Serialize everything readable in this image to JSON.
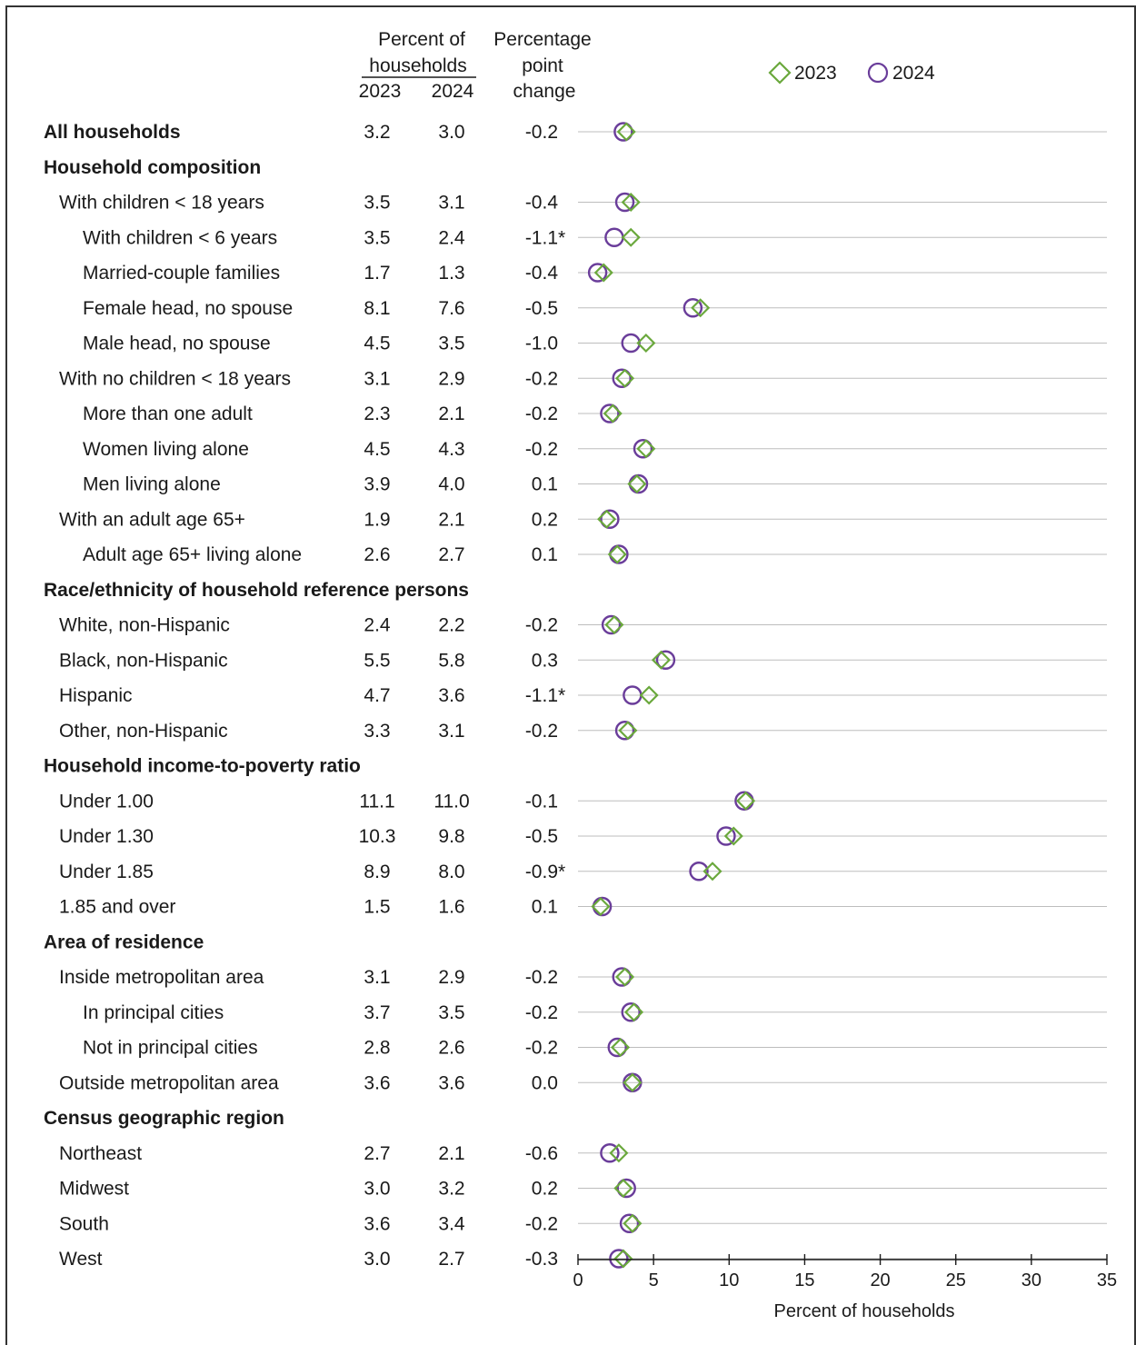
{
  "chart_data": {
    "type": "scatter",
    "header": {
      "percent_line1": "Percent of",
      "percent_line2": "households",
      "col_2023": "2023",
      "col_2024": "2024",
      "change_line1": "Percentage",
      "change_line2": "point",
      "change_line3": "change"
    },
    "legend": [
      {
        "name": "2023",
        "marker": "diamond",
        "color": "#6aa83c"
      },
      {
        "name": "2024",
        "marker": "circle",
        "color": "#6a3d9a"
      }
    ],
    "xlabel": "Percent of households",
    "xlim": [
      0,
      35
    ],
    "xticks": [
      "0",
      "5",
      "10",
      "15",
      "20",
      "25",
      "30",
      "35"
    ],
    "rows": [
      {
        "label": "All households",
        "level": 0,
        "section": true,
        "v2023": 3.2,
        "v2024": 3.0,
        "t2023": "3.2",
        "t2024": "3.0",
        "change": "-0.2"
      },
      {
        "label": "Household composition",
        "level": 0,
        "section": true
      },
      {
        "label": "With children < 18 years",
        "level": 1,
        "v2023": 3.5,
        "v2024": 3.1,
        "t2023": "3.5",
        "t2024": "3.1",
        "change": "-0.4"
      },
      {
        "label": "With children < 6 years",
        "level": 2,
        "v2023": 3.5,
        "v2024": 2.4,
        "t2023": "3.5",
        "t2024": "2.4",
        "change": "-1.1*"
      },
      {
        "label": "Married-couple families",
        "level": 2,
        "v2023": 1.7,
        "v2024": 1.3,
        "t2023": "1.7",
        "t2024": "1.3",
        "change": "-0.4"
      },
      {
        "label": "Female head, no spouse",
        "level": 2,
        "v2023": 8.1,
        "v2024": 7.6,
        "t2023": "8.1",
        "t2024": "7.6",
        "change": "-0.5"
      },
      {
        "label": "Male head, no spouse",
        "level": 2,
        "v2023": 4.5,
        "v2024": 3.5,
        "t2023": "4.5",
        "t2024": "3.5",
        "change": "-1.0"
      },
      {
        "label": "With no children < 18 years",
        "level": 1,
        "v2023": 3.1,
        "v2024": 2.9,
        "t2023": "3.1",
        "t2024": "2.9",
        "change": "-0.2"
      },
      {
        "label": "More than one adult",
        "level": 2,
        "v2023": 2.3,
        "v2024": 2.1,
        "t2023": "2.3",
        "t2024": "2.1",
        "change": "-0.2"
      },
      {
        "label": "Women living alone",
        "level": 2,
        "v2023": 4.5,
        "v2024": 4.3,
        "t2023": "4.5",
        "t2024": "4.3",
        "change": "-0.2"
      },
      {
        "label": "Men living alone",
        "level": 2,
        "v2023": 3.9,
        "v2024": 4.0,
        "t2023": "3.9",
        "t2024": "4.0",
        "change": "0.1"
      },
      {
        "label": "With an adult age 65+",
        "level": 1,
        "v2023": 1.9,
        "v2024": 2.1,
        "t2023": "1.9",
        "t2024": "2.1",
        "change": "0.2"
      },
      {
        "label": "Adult age 65+ living alone",
        "level": 2,
        "v2023": 2.6,
        "v2024": 2.7,
        "t2023": "2.6",
        "t2024": "2.7",
        "change": "0.1"
      },
      {
        "label": "Race/ethnicity of household reference persons",
        "level": 0,
        "section": true
      },
      {
        "label": "White, non-Hispanic",
        "level": 1,
        "v2023": 2.4,
        "v2024": 2.2,
        "t2023": "2.4",
        "t2024": "2.2",
        "change": "-0.2"
      },
      {
        "label": "Black, non-Hispanic",
        "level": 1,
        "v2023": 5.5,
        "v2024": 5.8,
        "t2023": "5.5",
        "t2024": "5.8",
        "change": "0.3"
      },
      {
        "label": "Hispanic",
        "level": 1,
        "v2023": 4.7,
        "v2024": 3.6,
        "t2023": "4.7",
        "t2024": "3.6",
        "change": "-1.1*"
      },
      {
        "label": "Other, non-Hispanic",
        "level": 1,
        "v2023": 3.3,
        "v2024": 3.1,
        "t2023": "3.3",
        "t2024": "3.1",
        "change": "-0.2"
      },
      {
        "label": "Household income-to-poverty ratio",
        "level": 0,
        "section": true
      },
      {
        "label": "Under 1.00",
        "level": 1,
        "v2023": 11.1,
        "v2024": 11.0,
        "t2023": "11.1",
        "t2024": "11.0",
        "change": "-0.1"
      },
      {
        "label": "Under 1.30",
        "level": 1,
        "v2023": 10.3,
        "v2024": 9.8,
        "t2023": "10.3",
        "t2024": "9.8",
        "change": "-0.5"
      },
      {
        "label": "Under 1.85",
        "level": 1,
        "v2023": 8.9,
        "v2024": 8.0,
        "t2023": "8.9",
        "t2024": "8.0",
        "change": "-0.9*"
      },
      {
        "label": "1.85 and over",
        "level": 1,
        "v2023": 1.5,
        "v2024": 1.6,
        "t2023": "1.5",
        "t2024": "1.6",
        "change": "0.1"
      },
      {
        "label": "Area of residence",
        "level": 0,
        "section": true
      },
      {
        "label": "Inside metropolitan area",
        "level": 1,
        "v2023": 3.1,
        "v2024": 2.9,
        "t2023": "3.1",
        "t2024": "2.9",
        "change": "-0.2"
      },
      {
        "label": "In principal cities",
        "level": 2,
        "v2023": 3.7,
        "v2024": 3.5,
        "t2023": "3.7",
        "t2024": "3.5",
        "change": "-0.2"
      },
      {
        "label": "Not in principal cities",
        "level": 2,
        "v2023": 2.8,
        "v2024": 2.6,
        "t2023": "2.8",
        "t2024": "2.6",
        "change": "-0.2"
      },
      {
        "label": "Outside metropolitan area",
        "level": 1,
        "v2023": 3.6,
        "v2024": 3.6,
        "t2023": "3.6",
        "t2024": "3.6",
        "change": "0.0"
      },
      {
        "label": "Census geographic region",
        "level": 0,
        "section": true
      },
      {
        "label": "Northeast",
        "level": 1,
        "v2023": 2.7,
        "v2024": 2.1,
        "t2023": "2.7",
        "t2024": "2.1",
        "change": "-0.6"
      },
      {
        "label": "Midwest",
        "level": 1,
        "v2023": 3.0,
        "v2024": 3.2,
        "t2023": "3.0",
        "t2024": "3.2",
        "change": "0.2"
      },
      {
        "label": "South",
        "level": 1,
        "v2023": 3.6,
        "v2024": 3.4,
        "t2023": "3.6",
        "t2024": "3.4",
        "change": "-0.2"
      },
      {
        "label": "West",
        "level": 1,
        "v2023": 3.0,
        "v2024": 2.7,
        "t2023": "3.0",
        "t2024": "2.7",
        "change": "-0.3"
      }
    ]
  }
}
